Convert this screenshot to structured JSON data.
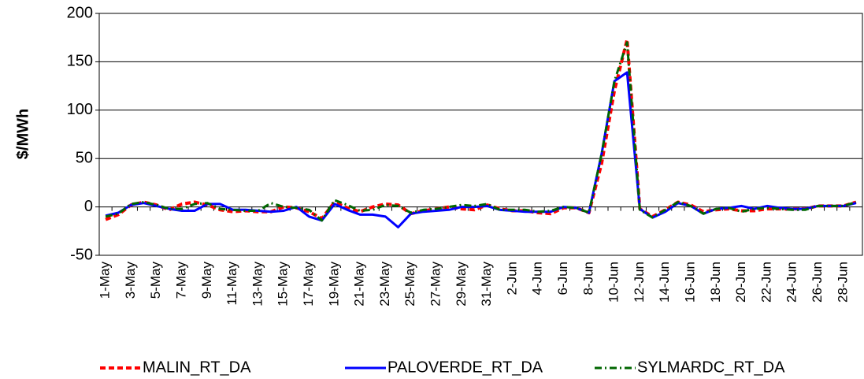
{
  "chart_data": {
    "type": "line",
    "y_label": "$/MWh",
    "categories": [
      "1-May",
      null,
      "3-May",
      null,
      "5-May",
      null,
      "7-May",
      null,
      "9-May",
      null,
      "11-May",
      null,
      "13-May",
      null,
      "15-May",
      null,
      "17-May",
      null,
      "19-May",
      null,
      "21-May",
      null,
      "23-May",
      null,
      "25-May",
      null,
      "27-May",
      null,
      "29-May",
      null,
      "31-May",
      null,
      "2-Jun",
      null,
      "4-Jun",
      null,
      "6-Jun",
      null,
      "8-Jun",
      null,
      "10-Jun",
      null,
      "12-Jun",
      null,
      "14-Jun",
      null,
      "16-Jun",
      null,
      "18-Jun",
      null,
      "20-Jun",
      null,
      "22-Jun",
      null,
      "24-Jun",
      null,
      "26-Jun",
      null,
      "28-Jun",
      null
    ],
    "series": [
      {
        "name": "MALIN_RT_DA",
        "color": "#ff0000",
        "values": [
          -13,
          -8,
          2,
          5,
          2,
          -3,
          3,
          5,
          2,
          -3,
          -5,
          -4,
          -5,
          -5,
          0,
          -1,
          -5,
          -12,
          5,
          -1,
          -5,
          0,
          3,
          2,
          -7,
          -4,
          -2,
          0,
          -2,
          -3,
          2,
          -2,
          -4,
          -4,
          -6,
          -7,
          -1,
          -1,
          -6,
          45,
          120,
          173,
          -2,
          -10,
          -3,
          5,
          2,
          -5,
          -3,
          -2,
          -4,
          -4,
          -2,
          -2,
          -2,
          -2,
          1,
          1,
          1,
          5
        ]
      },
      {
        "name": "PALOVERDE_RT_DA",
        "color": "#0000ff",
        "values": [
          -9,
          -6,
          2,
          4,
          1,
          -2,
          -4,
          -4,
          3,
          3,
          -3,
          -3,
          -4,
          -5,
          -4,
          0,
          -10,
          -14,
          3,
          -3,
          -8,
          -8,
          -10,
          -21,
          -7,
          -5,
          -4,
          -3,
          0,
          0,
          1,
          -3,
          -4,
          -5,
          -5,
          -5,
          0,
          -1,
          -6,
          55,
          130,
          139,
          -2,
          -11,
          -5,
          4,
          1,
          -7,
          -2,
          -1,
          1,
          -2,
          1,
          -1,
          -2,
          -2,
          1,
          1,
          1,
          4
        ]
      },
      {
        "name": "SYLMARDC_RT_DA",
        "color": "#006600",
        "values": [
          -10,
          -7,
          3,
          5,
          2,
          -2,
          -2,
          3,
          4,
          -2,
          -3,
          -4,
          -4,
          4,
          0,
          -1,
          -3,
          -14,
          7,
          2,
          -4,
          -3,
          2,
          1,
          -6,
          -3,
          -2,
          0,
          2,
          1,
          3,
          -3,
          -3,
          -3,
          -5,
          -4,
          0,
          -1,
          -6,
          55,
          130,
          170,
          -3,
          -11,
          -3,
          5,
          1,
          -7,
          -2,
          -1,
          -5,
          -2,
          -1,
          -2,
          -3,
          -3,
          1,
          1,
          1,
          5
        ]
      }
    ],
    "ylim": [
      -50,
      200
    ],
    "yticks": [
      -50,
      0,
      50,
      100,
      150,
      200
    ],
    "grid": true
  }
}
